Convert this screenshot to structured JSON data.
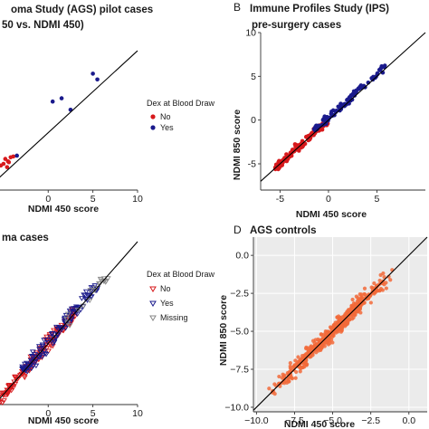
{
  "chart_data": [
    {
      "id": "A",
      "type": "scatter",
      "letter": "",
      "title": [
        "oma Study (AGS) pilot cases",
        "50 vs. NDMI 450)"
      ],
      "xlabel": "NDMI 450 score",
      "ylabel": "",
      "xlim": [
        -6,
        10
      ],
      "ylim": [
        -7,
        11
      ],
      "xticks": [
        "0",
        "5",
        "10"
      ],
      "xtick_values": [
        0,
        5,
        10
      ],
      "yticks": [],
      "diagonal": true,
      "legend": {
        "title": "Dex at Blood Draw",
        "entries": [
          "No",
          "Yes"
        ],
        "position": "right"
      },
      "series": [
        {
          "name": "No",
          "color": "#d7191c",
          "marker": "circle",
          "points": [
            [
              -4.8,
              -3.2
            ],
            [
              -4.5,
              -3.5
            ],
            [
              -4.2,
              -3.0
            ],
            [
              -5.0,
              -3.8
            ],
            [
              -4.6,
              -4.2
            ],
            [
              -3.9,
              -2.9
            ],
            [
              -5.3,
              -4.0
            ],
            [
              -4.4,
              -3.6
            ]
          ]
        },
        {
          "name": "Yes",
          "color": "#1a1a8c",
          "marker": "circle",
          "points": [
            [
              0.5,
              3.8
            ],
            [
              1.5,
              4.2
            ],
            [
              5.5,
              6.5
            ],
            [
              5.0,
              7.2
            ],
            [
              2.5,
              2.8
            ],
            [
              -3.5,
              -2.8
            ]
          ]
        }
      ]
    },
    {
      "id": "B",
      "type": "scatter",
      "letter": "B",
      "title": [
        "Immune Profiles Study (IPS)",
        "pre-surgery cases"
      ],
      "xlabel": "NDMI 450 score",
      "ylabel": "NDMI 850 score",
      "xlim": [
        -7,
        10
      ],
      "ylim": [
        -8,
        10
      ],
      "xticks": [
        "-5",
        "0",
        "5"
      ],
      "xtick_values": [
        -5,
        0,
        5
      ],
      "yticks": [
        "-5",
        "0",
        "5",
        "10"
      ],
      "ytick_values": [
        -5,
        0,
        5,
        10
      ],
      "diagonal": true,
      "series": [
        {
          "name": "No",
          "color": "#d7191c",
          "marker": "circle"
        },
        {
          "name": "Yes",
          "color": "#1a1a8c",
          "marker": "circle"
        }
      ]
    },
    {
      "id": "C",
      "type": "scatter",
      "letter": "",
      "title": [
        "ma cases"
      ],
      "xlabel": "NDMI 450 score",
      "ylabel": "",
      "xlim": [
        -6,
        10
      ],
      "ylim": [
        -6,
        10
      ],
      "xticks": [
        "0",
        "5",
        "10"
      ],
      "xtick_values": [
        0,
        5,
        10
      ],
      "yticks": [],
      "diagonal": true,
      "legend": {
        "title": "Dex at Blood Draw",
        "entries": [
          "No",
          "Yes",
          "Missing"
        ],
        "position": "right"
      },
      "series": [
        {
          "name": "No",
          "color": "#d7191c",
          "marker": "triangle-down"
        },
        {
          "name": "Yes",
          "color": "#1a1a8c",
          "marker": "triangle-down"
        },
        {
          "name": "Missing",
          "color": "#888888",
          "marker": "triangle-down"
        }
      ]
    },
    {
      "id": "D",
      "type": "scatter",
      "letter": "D",
      "title": [
        "AGS controls"
      ],
      "xlabel": "NDMI 450 score",
      "ylabel": "NDMI 850 score",
      "xlim": [
        -10.2,
        1.2
      ],
      "ylim": [
        -10.3,
        1.2
      ],
      "xticks": [
        "−10.0",
        "−7.5",
        "−5.0",
        "−2.5",
        "0.0"
      ],
      "xtick_values": [
        -10,
        -7.5,
        -5,
        -2.5,
        0
      ],
      "yticks": [
        "−10.0",
        "−7.5",
        "−5.0",
        "−2.5",
        "0.0"
      ],
      "ytick_values": [
        -10,
        -7.5,
        -5,
        -2.5,
        0
      ],
      "diagonal": true,
      "grid": true,
      "series": [
        {
          "name": "",
          "color": "#f26a3a",
          "marker": "circle"
        }
      ]
    }
  ]
}
